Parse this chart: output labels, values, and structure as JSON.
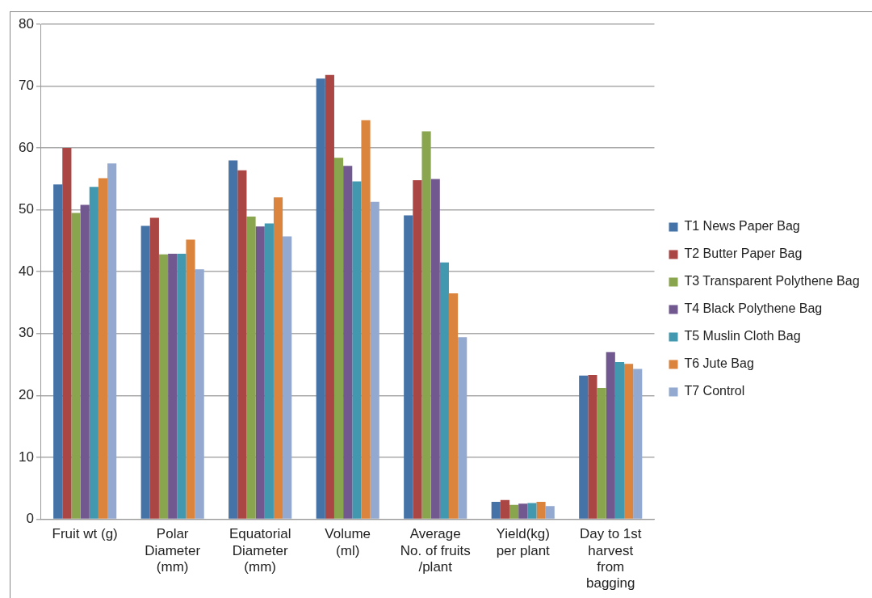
{
  "chart_data": {
    "type": "bar",
    "categories": [
      "Fruit wt (g)",
      "Polar Diameter (mm)",
      "Equatorial Diameter (mm)",
      "Volume (ml)",
      "Average No. of fruits /plant",
      "Yield(kg) per plant",
      "Day to 1st harvest from bagging"
    ],
    "series": [
      {
        "name": "T1 News Paper Bag",
        "color": "#4572a7",
        "values": [
          54.1,
          47.4,
          58.0,
          71.2,
          49.1,
          2.8,
          23.2
        ]
      },
      {
        "name": "T2 Butter Paper Bag",
        "color": "#aa4643",
        "values": [
          60.0,
          48.7,
          56.4,
          71.8,
          54.8,
          3.1,
          23.3
        ]
      },
      {
        "name": "T3 Transparent Polythene Bag",
        "color": "#89a54e",
        "values": [
          49.5,
          42.8,
          48.9,
          58.4,
          62.7,
          2.3,
          21.2
        ]
      },
      {
        "name": "T4 Black Polythene Bag",
        "color": "#71588f",
        "values": [
          50.8,
          42.9,
          47.3,
          57.1,
          55.0,
          2.5,
          27.0
        ]
      },
      {
        "name": "T5 Muslin Cloth Bag",
        "color": "#4198af",
        "values": [
          53.7,
          42.9,
          47.8,
          54.6,
          41.5,
          2.6,
          25.4
        ]
      },
      {
        "name": "T6 Jute Bag",
        "color": "#db843d",
        "values": [
          55.1,
          45.2,
          52.0,
          64.5,
          36.5,
          2.8,
          25.1
        ]
      },
      {
        "name": "T7 Control",
        "color": "#93a9cf",
        "values": [
          57.5,
          40.4,
          45.7,
          51.3,
          29.4,
          2.1,
          24.3
        ]
      }
    ],
    "ylim": [
      0,
      80
    ],
    "yticks": [
      0,
      10,
      20,
      30,
      40,
      50,
      60,
      70,
      80
    ],
    "grid": "y",
    "legend": "right"
  }
}
